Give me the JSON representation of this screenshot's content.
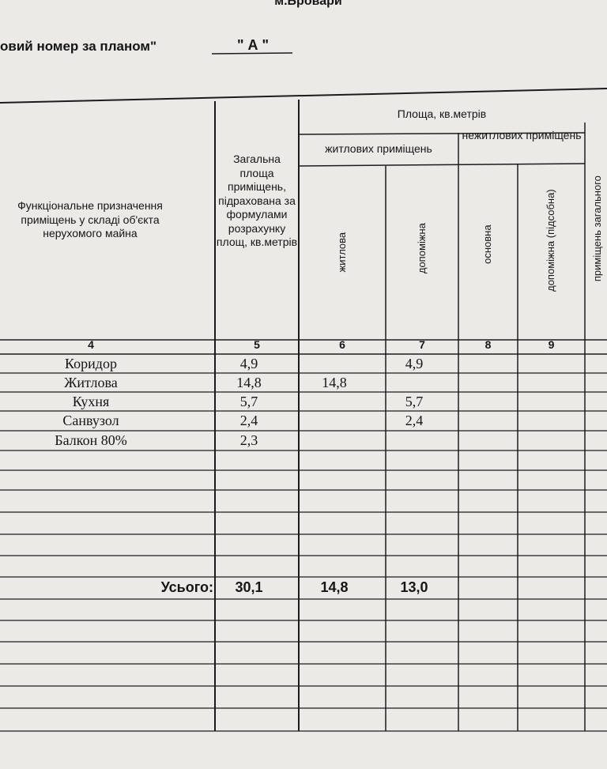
{
  "header": {
    "location": "м.Бровари",
    "plan_number_label": "овий номер за планом\"",
    "plan_number": "\" А \""
  },
  "table": {
    "headers": {
      "purpose": "Функціональне призначення приміщень у складі об'єкта нерухомого майна",
      "total": "Загальна площа приміщень, підрахована за формулами розрахунку площ, кв.метрів",
      "area": "Площа, кв.метрів",
      "living_rooms": "житлових приміщень",
      "nonliving_rooms": "нежитлових приміщень",
      "living": "житлова",
      "auxiliary": "допоміжна",
      "main": "основна",
      "utility": "допоміжна (підсобна)",
      "common": "приміщень загального"
    },
    "column_numbers": [
      "4",
      "5",
      "6",
      "7",
      "8",
      "9"
    ],
    "rows": [
      {
        "name": "Коридор",
        "total": "4,9",
        "auxiliary": "4,9"
      },
      {
        "name": "Житлова",
        "total": "14,8",
        "living": "14,8"
      },
      {
        "name": "Кухня",
        "total": "5,7",
        "auxiliary": "5,7"
      },
      {
        "name": "Санвузол",
        "total": "2,4",
        "auxiliary": "2,4"
      },
      {
        "name": "Балкон 80%",
        "total": "2,3"
      }
    ],
    "summary": {
      "label": "Усього:",
      "total": "30,1",
      "living": "14,8",
      "auxiliary": "13,0"
    }
  }
}
